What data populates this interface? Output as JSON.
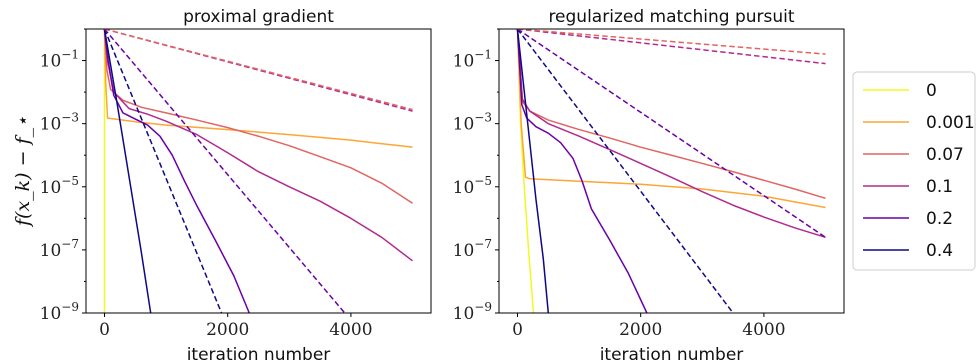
{
  "chart_data": [
    {
      "type": "line",
      "title": "proximal gradient",
      "xlabel": "iteration number",
      "ylabel": "f(x_k) − f_⋆",
      "yscale": "log",
      "xlim": [
        -300,
        5300
      ],
      "ylim": [
        1e-09,
        1
      ],
      "xticks": [
        0,
        2000,
        4000
      ],
      "xtick_labels": [
        "0",
        "2000",
        "4000"
      ],
      "yticks": [
        1e-09,
        1e-07,
        1e-05,
        0.001,
        0.1
      ],
      "ytick_labels": [
        "10^-9",
        "10^-7",
        "10^-5",
        "10^-3",
        "10^-1"
      ],
      "grid": false,
      "series": [
        {
          "name": "0",
          "color": "#f0f921",
          "style": "solid",
          "points": [
            [
              0,
              1
            ],
            [
              0,
              1e-09
            ]
          ]
        },
        {
          "name": "0.001",
          "color": "#fca636",
          "style": "solid",
          "points": [
            [
              0,
              1
            ],
            [
              20,
              0.02
            ],
            [
              50,
              0.0015
            ],
            [
              500,
              0.00115
            ],
            [
              1000,
              0.0009
            ],
            [
              2000,
              0.00065
            ],
            [
              3000,
              0.00045
            ],
            [
              4000,
              0.0003
            ],
            [
              5000,
              0.00018
            ]
          ]
        },
        {
          "name": "0.07",
          "color": "#e16462",
          "style": "solid",
          "points": [
            [
              0,
              1
            ],
            [
              40,
              0.05
            ],
            [
              100,
              0.012
            ],
            [
              300,
              0.0055
            ],
            [
              600,
              0.0033
            ],
            [
              1000,
              0.0022
            ],
            [
              1500,
              0.0013
            ],
            [
              2000,
              0.00075
            ],
            [
              2500,
              0.0004
            ],
            [
              3000,
              0.0002
            ],
            [
              3500,
              9e-05
            ],
            [
              4000,
              4e-05
            ],
            [
              4500,
              1.3e-05
            ],
            [
              5000,
              3e-06
            ]
          ]
        },
        {
          "name": "0.1",
          "color": "#b12a90",
          "style": "solid",
          "points": [
            [
              0,
              1
            ],
            [
              50,
              0.1
            ],
            [
              150,
              0.01
            ],
            [
              400,
              0.003
            ],
            [
              700,
              0.002
            ],
            [
              1000,
              0.0012
            ],
            [
              1500,
              0.00045
            ],
            [
              2000,
              0.00012
            ],
            [
              2500,
              3e-05
            ],
            [
              3000,
              1e-05
            ],
            [
              3500,
              3.5e-06
            ],
            [
              4000,
              1e-06
            ],
            [
              4500,
              2.5e-07
            ],
            [
              5000,
              4.5e-08
            ]
          ]
        },
        {
          "name": "0.2",
          "color": "#6a00a8",
          "style": "solid",
          "points": [
            [
              0,
              1
            ],
            [
              60,
              0.1
            ],
            [
              150,
              0.008
            ],
            [
              300,
              0.0022
            ],
            [
              500,
              0.0014
            ],
            [
              700,
              0.0009
            ],
            [
              900,
              0.0004
            ],
            [
              1100,
              0.0001
            ],
            [
              1300,
              1.5e-05
            ],
            [
              1500,
              2.5e-06
            ],
            [
              1800,
              2e-07
            ],
            [
              2100,
              1.5e-08
            ],
            [
              2350,
              1e-09
            ]
          ]
        },
        {
          "name": "0.4",
          "color": "#0d0887",
          "style": "solid",
          "points": [
            [
              0,
              1
            ],
            [
              200,
              0.005
            ],
            [
              400,
              2e-05
            ],
            [
              600,
              8e-08
            ],
            [
              750,
              1e-09
            ]
          ]
        },
        {
          "name": "",
          "color": "#0d0887",
          "style": "dashed",
          "points": [
            [
              0,
              1
            ],
            [
              1900,
              1e-09
            ]
          ]
        },
        {
          "name": "",
          "color": "#6a00a8",
          "style": "dashed",
          "points": [
            [
              0,
              1
            ],
            [
              3900,
              1e-09
            ]
          ]
        },
        {
          "name": "",
          "color": "#b12a90",
          "style": "dashed",
          "points": [
            [
              0,
              1
            ],
            [
              5000,
              0.0025
            ]
          ]
        },
        {
          "name": "",
          "color": "#e16462",
          "style": "dashed",
          "points": [
            [
              0,
              1
            ],
            [
              5000,
              0.0028
            ]
          ]
        }
      ]
    },
    {
      "type": "line",
      "title": "regularized matching pursuit",
      "xlabel": "iteration number",
      "yscale": "log",
      "xlim": [
        -300,
        5300
      ],
      "ylim": [
        1e-09,
        1
      ],
      "xticks": [
        0,
        2000,
        4000
      ],
      "xtick_labels": [
        "0",
        "2000",
        "4000"
      ],
      "yticks": [
        1e-09,
        1e-07,
        1e-05,
        0.001,
        0.1
      ],
      "ytick_labels": [
        "10^-9",
        "10^-7",
        "10^-5",
        "10^-3",
        "10^-1"
      ],
      "grid": false,
      "series": [
        {
          "name": "0",
          "color": "#f0f921",
          "style": "solid",
          "points": [
            [
              0,
              1
            ],
            [
              50,
              0.001
            ],
            [
              100,
              2e-05
            ],
            [
              180,
              1e-07
            ],
            [
              260,
              1e-09
            ]
          ]
        },
        {
          "name": "0.001",
          "color": "#fca636",
          "style": "solid",
          "points": [
            [
              0,
              1
            ],
            [
              60,
              0.001
            ],
            [
              130,
              2e-05
            ],
            [
              200,
              1.8e-05
            ],
            [
              1000,
              1.5e-05
            ],
            [
              2000,
              1.2e-05
            ],
            [
              3000,
              8.5e-06
            ],
            [
              4000,
              5e-06
            ],
            [
              5000,
              2.2e-06
            ]
          ]
        },
        {
          "name": "0.07",
          "color": "#e16462",
          "style": "solid",
          "points": [
            [
              0,
              1
            ],
            [
              80,
              0.005
            ],
            [
              200,
              0.0025
            ],
            [
              500,
              0.0013
            ],
            [
              1000,
              0.00065
            ],
            [
              1500,
              0.00035
            ],
            [
              2000,
              0.00018
            ],
            [
              2500,
              0.0001
            ],
            [
              3000,
              5.5e-05
            ],
            [
              3500,
              3e-05
            ],
            [
              4000,
              1.6e-05
            ],
            [
              4500,
              8.5e-06
            ],
            [
              5000,
              4.3e-06
            ]
          ]
        },
        {
          "name": "0.1",
          "color": "#b12a90",
          "style": "solid",
          "points": [
            [
              0,
              1
            ],
            [
              80,
              0.006
            ],
            [
              200,
              0.0025
            ],
            [
              500,
              0.001
            ],
            [
              1000,
              0.0004
            ],
            [
              1500,
              0.00015
            ],
            [
              2000,
              5.5e-05
            ],
            [
              2500,
              2e-05
            ],
            [
              3000,
              7e-06
            ],
            [
              3500,
              2.6e-06
            ],
            [
              4000,
              1.1e-06
            ],
            [
              4500,
              5e-07
            ],
            [
              5000,
              2.5e-07
            ]
          ]
        },
        {
          "name": "0.2",
          "color": "#6a00a8",
          "style": "solid",
          "points": [
            [
              0,
              1
            ],
            [
              70,
              0.004
            ],
            [
              150,
              0.0015
            ],
            [
              300,
              0.0008
            ],
            [
              500,
              0.0005
            ],
            [
              700,
              0.00025
            ],
            [
              900,
              8e-05
            ],
            [
              1050,
              1.5e-05
            ],
            [
              1200,
              2e-06
            ],
            [
              1500,
              2e-07
            ],
            [
              1800,
              1.8e-08
            ],
            [
              2100,
              1e-09
            ]
          ]
        },
        {
          "name": "0.4",
          "color": "#0d0887",
          "style": "solid",
          "points": [
            [
              0,
              1
            ],
            [
              150,
              0.002
            ],
            [
              300,
              4e-06
            ],
            [
              420,
              5e-08
            ],
            [
              500,
              1e-09
            ]
          ]
        },
        {
          "name": "",
          "color": "#0d0887",
          "style": "dashed",
          "points": [
            [
              0,
              1
            ],
            [
              3500,
              1e-09
            ]
          ]
        },
        {
          "name": "",
          "color": "#6a00a8",
          "style": "dashed",
          "points": [
            [
              0,
              1
            ],
            [
              5000,
              2.5e-07
            ]
          ]
        },
        {
          "name": "",
          "color": "#b12a90",
          "style": "dashed",
          "points": [
            [
              0,
              1
            ],
            [
              5000,
              0.08
            ]
          ]
        },
        {
          "name": "",
          "color": "#e16462",
          "style": "dashed",
          "points": [
            [
              0,
              1
            ],
            [
              5000,
              0.16
            ]
          ]
        }
      ]
    }
  ],
  "legend": {
    "placement": "right",
    "entries": [
      {
        "label": "0",
        "color": "#f0f921"
      },
      {
        "label": "0.001",
        "color": "#fca636"
      },
      {
        "label": "0.07",
        "color": "#e16462"
      },
      {
        "label": "0.1",
        "color": "#b12a90"
      },
      {
        "label": "0.2",
        "color": "#6a00a8"
      },
      {
        "label": "0.4",
        "color": "#0d0887"
      }
    ]
  }
}
